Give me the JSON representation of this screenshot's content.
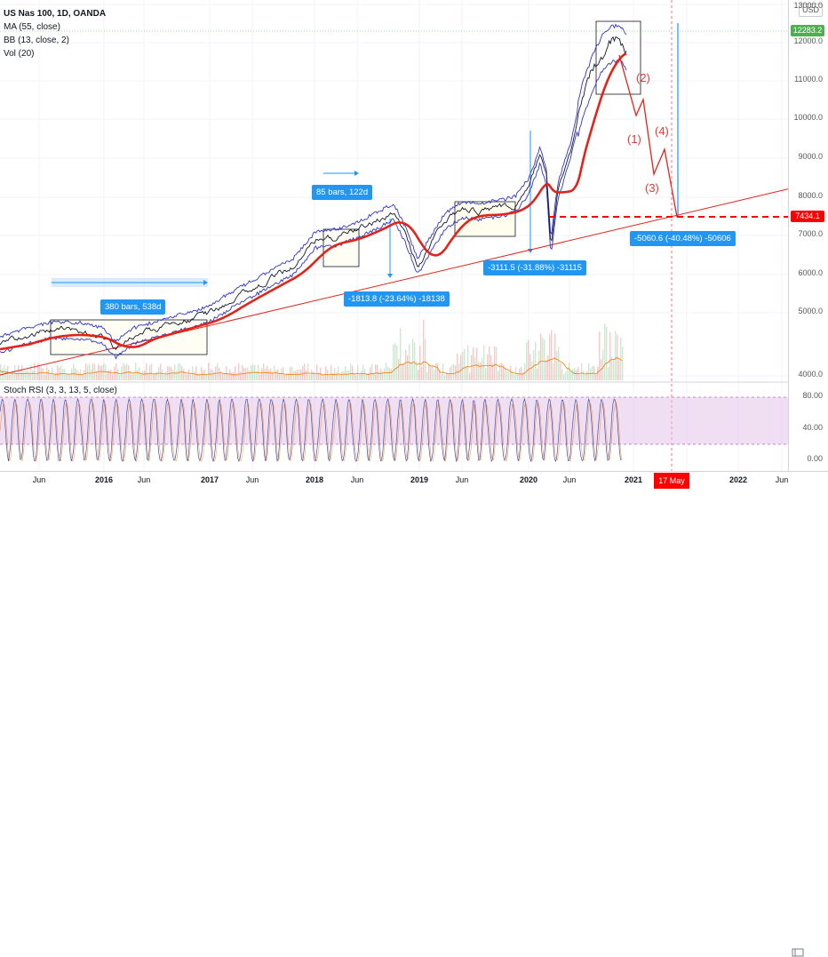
{
  "legend": {
    "symbol": "US Nas 100, 1D, OANDA",
    "indicators": [
      "MA (55, close)",
      "BB (13, close, 2)",
      "Vol (20)"
    ]
  },
  "stoch": {
    "title": "Stoch RSI (3, 3, 13, 5, close)",
    "ticks": [
      "80.00",
      "40.00",
      "0.00"
    ]
  },
  "price_axis": {
    "currency": "USD",
    "ticks": [
      "13000.0",
      "12000.0",
      "11000.0",
      "10000.0",
      "9000.0",
      "8000.0",
      "7000.0",
      "6000.0",
      "5000.0",
      "4000.0"
    ],
    "current_price": "12283.2",
    "target_price": "7434.1"
  },
  "time_axis": {
    "labels": [
      {
        "text": "Jun",
        "year": false
      },
      {
        "text": "2016",
        "year": true
      },
      {
        "text": "Jun",
        "year": false
      },
      {
        "text": "2017",
        "year": true
      },
      {
        "text": "Jun",
        "year": false
      },
      {
        "text": "2018",
        "year": true
      },
      {
        "text": "Jun",
        "year": false
      },
      {
        "text": "2019",
        "year": true
      },
      {
        "text": "Jun",
        "year": false
      },
      {
        "text": "2020",
        "year": true
      },
      {
        "text": "Jun",
        "year": false
      },
      {
        "text": "2021",
        "year": true
      },
      {
        "text": "2022",
        "year": true
      },
      {
        "text": "Jun",
        "year": false
      }
    ],
    "cursor_date": "17 May '21"
  },
  "callouts": {
    "c1": "380 bars, 538d",
    "c2": "85 bars, 122d",
    "c3": "-1813.8 (-23.64%) -18138",
    "c4": "-3111.5 (-31.88%) -31115",
    "c5": "-5060.6 (-40.48%) -50606"
  },
  "waves": [
    "(1)",
    "(2)",
    "(3)",
    "(4)"
  ],
  "colors": {
    "ma": "#e0241b",
    "price": "#131722",
    "bands": "#2f33c7",
    "trendline": "#e0241b",
    "callout": "#2196f3",
    "stoch_fill": "#e1bee7",
    "badge_current": "#4caf50",
    "badge_target": "#ff0000"
  },
  "icons": {
    "settings": "settings-icon"
  }
}
